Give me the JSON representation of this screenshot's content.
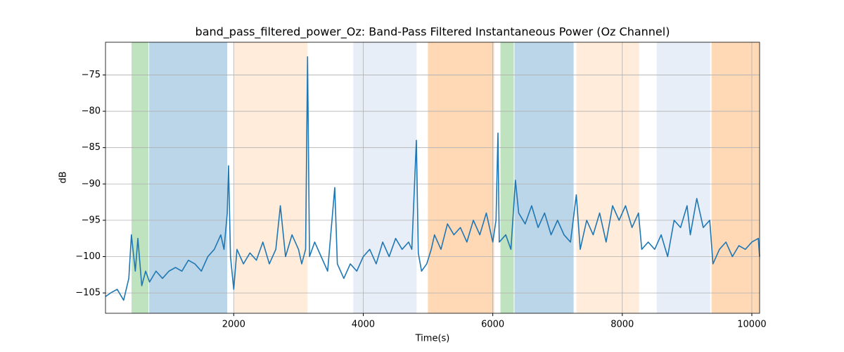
{
  "chart_data": {
    "type": "line",
    "title": "band_pass_filtered_power_Oz: Band-Pass Filtered Instantaneous Power (Oz Channel)",
    "x_label": "Time(s)",
    "y_label": "dB",
    "xlim": [
      20,
      10120
    ],
    "ylim": [
      -107.8,
      -70.5
    ],
    "xticks": [
      2000,
      4000,
      6000,
      8000,
      10000
    ],
    "yticks": [
      {
        "value": -105,
        "label": "−105"
      },
      {
        "value": -100,
        "label": "−100"
      },
      {
        "value": -95,
        "label": "−95"
      },
      {
        "value": -90,
        "label": "−90"
      },
      {
        "value": -85,
        "label": "−85"
      },
      {
        "value": -80,
        "label": "−80"
      },
      {
        "value": -75,
        "label": "−75"
      }
    ],
    "grid": true,
    "spans": [
      {
        "start": 422,
        "end": 683,
        "color": "#2ca02c",
        "opacity": 0.3
      },
      {
        "start": 694,
        "end": 1900,
        "color": "#1f77b4",
        "opacity": 0.3
      },
      {
        "start": 2009,
        "end": 3140,
        "color": "#ff7f0e",
        "opacity": 0.15
      },
      {
        "start": 3846,
        "end": 4824,
        "color": "#aec7e8",
        "opacity": 0.3
      },
      {
        "start": 4998,
        "end": 6020,
        "color": "#ff7f0e",
        "opacity": 0.3
      },
      {
        "start": 6118,
        "end": 6324,
        "color": "#2ca02c",
        "opacity": 0.3
      },
      {
        "start": 6335,
        "end": 7248,
        "color": "#1f77b4",
        "opacity": 0.3
      },
      {
        "start": 7292,
        "end": 8259,
        "color": "#ff7f0e",
        "opacity": 0.15
      },
      {
        "start": 8531,
        "end": 9357,
        "color": "#aec7e8",
        "opacity": 0.3
      },
      {
        "start": 9378,
        "end": 10120,
        "color": "#ff7f0e",
        "opacity": 0.3
      }
    ],
    "x": [
      20,
      100,
      200,
      300,
      380,
      420,
      480,
      520,
      580,
      640,
      700,
      800,
      900,
      1000,
      1100,
      1200,
      1300,
      1400,
      1500,
      1600,
      1700,
      1800,
      1850,
      1900,
      1920,
      1950,
      2000,
      2050,
      2150,
      2250,
      2350,
      2450,
      2550,
      2650,
      2720,
      2800,
      2900,
      3000,
      3050,
      3110,
      3140,
      3170,
      3250,
      3350,
      3450,
      3560,
      3600,
      3700,
      3800,
      3900,
      4000,
      4100,
      4200,
      4300,
      4400,
      4500,
      4600,
      4700,
      4750,
      4820,
      4850,
      4900,
      4980,
      5050,
      5100,
      5200,
      5300,
      5400,
      5500,
      5600,
      5700,
      5800,
      5900,
      5950,
      6000,
      6050,
      6080,
      6100,
      6200,
      6280,
      6350,
      6400,
      6500,
      6600,
      6700,
      6800,
      6900,
      7000,
      7100,
      7200,
      7290,
      7350,
      7450,
      7550,
      7650,
      7750,
      7850,
      7950,
      8050,
      8150,
      8250,
      8300,
      8400,
      8500,
      8600,
      8700,
      8800,
      8900,
      9000,
      9050,
      9150,
      9250,
      9350,
      9400,
      9500,
      9600,
      9700,
      9800,
      9900,
      10000,
      10100,
      10120
    ],
    "series": [
      {
        "color": "#1f77b4",
        "values": [
          -105.5,
          -105,
          -104.5,
          -106,
          -103,
          -97,
          -102,
          -97.5,
          -104,
          -102,
          -103.5,
          -102,
          -103,
          -102,
          -101.5,
          -102,
          -100.5,
          -101,
          -102,
          -100,
          -99,
          -97,
          -99,
          -94,
          -87.5,
          -100,
          -104.5,
          -99,
          -101,
          -99.5,
          -100.5,
          -98,
          -101,
          -99,
          -93,
          -100,
          -97,
          -99,
          -101,
          -99,
          -72.5,
          -100,
          -98,
          -100,
          -102,
          -90.5,
          -101,
          -103,
          -101,
          -102,
          -100,
          -99,
          -101,
          -98,
          -100,
          -97.5,
          -99,
          -98,
          -99,
          -84,
          -99.5,
          -102,
          -101,
          -99,
          -97,
          -99,
          -95.5,
          -97,
          -96,
          -98,
          -95,
          -97,
          -94,
          -96,
          -98,
          -95,
          -83,
          -98,
          -97,
          -99,
          -89.5,
          -94,
          -95.5,
          -93,
          -96,
          -94,
          -97,
          -95,
          -97,
          -98,
          -91.5,
          -99,
          -95,
          -97,
          -94,
          -98,
          -93,
          -95,
          -93,
          -96,
          -94,
          -99,
          -98,
          -99,
          -97,
          -100,
          -95,
          -96,
          -93,
          -97,
          -92,
          -96,
          -95,
          -101,
          -99,
          -98,
          -100,
          -98.5,
          -99,
          -98,
          -97.5,
          -100
        ]
      }
    ]
  }
}
